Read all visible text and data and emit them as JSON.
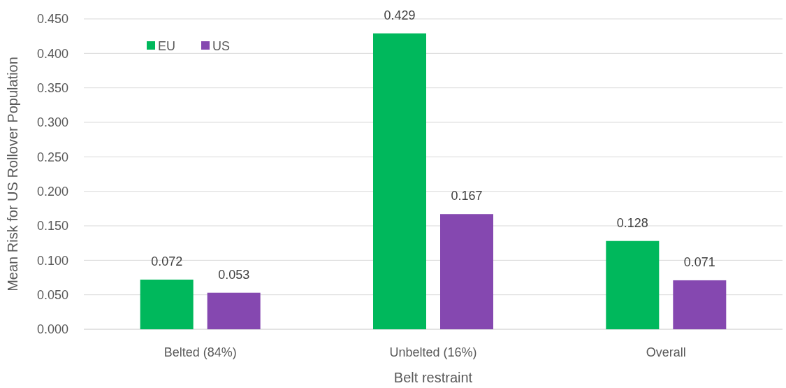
{
  "chart_data": {
    "type": "bar",
    "xlabel": "Belt restraint",
    "ylabel": "Mean Risk for US Rollover Population",
    "categories": [
      "Belted (84%)",
      "Unbelted (16%)",
      "Overall"
    ],
    "series": [
      {
        "name": "EU",
        "color": "#00b85c",
        "values": [
          0.072,
          0.429,
          0.128
        ],
        "value_labels": [
          "0.072",
          "0.429",
          "0.128"
        ]
      },
      {
        "name": "US",
        "color": "#8548b0",
        "values": [
          0.053,
          0.167,
          0.071
        ],
        "value_labels": [
          "0.053",
          "0.167",
          "0.071"
        ]
      }
    ],
    "ylim": [
      0,
      0.45
    ],
    "yticks": [
      {
        "value": 0,
        "label": "0.000"
      },
      {
        "value": 0.05,
        "label": "0.050"
      },
      {
        "value": 0.1,
        "label": "0.100"
      },
      {
        "value": 0.15,
        "label": "0.150"
      },
      {
        "value": 0.2,
        "label": "0.200"
      },
      {
        "value": 0.25,
        "label": "0.250"
      },
      {
        "value": 0.3,
        "label": "0.300"
      },
      {
        "value": 0.35,
        "label": "0.350"
      },
      {
        "value": 0.4,
        "label": "0.400"
      },
      {
        "value": 0.45,
        "label": "0.450"
      }
    ],
    "grid": "y",
    "legend": "top left"
  }
}
